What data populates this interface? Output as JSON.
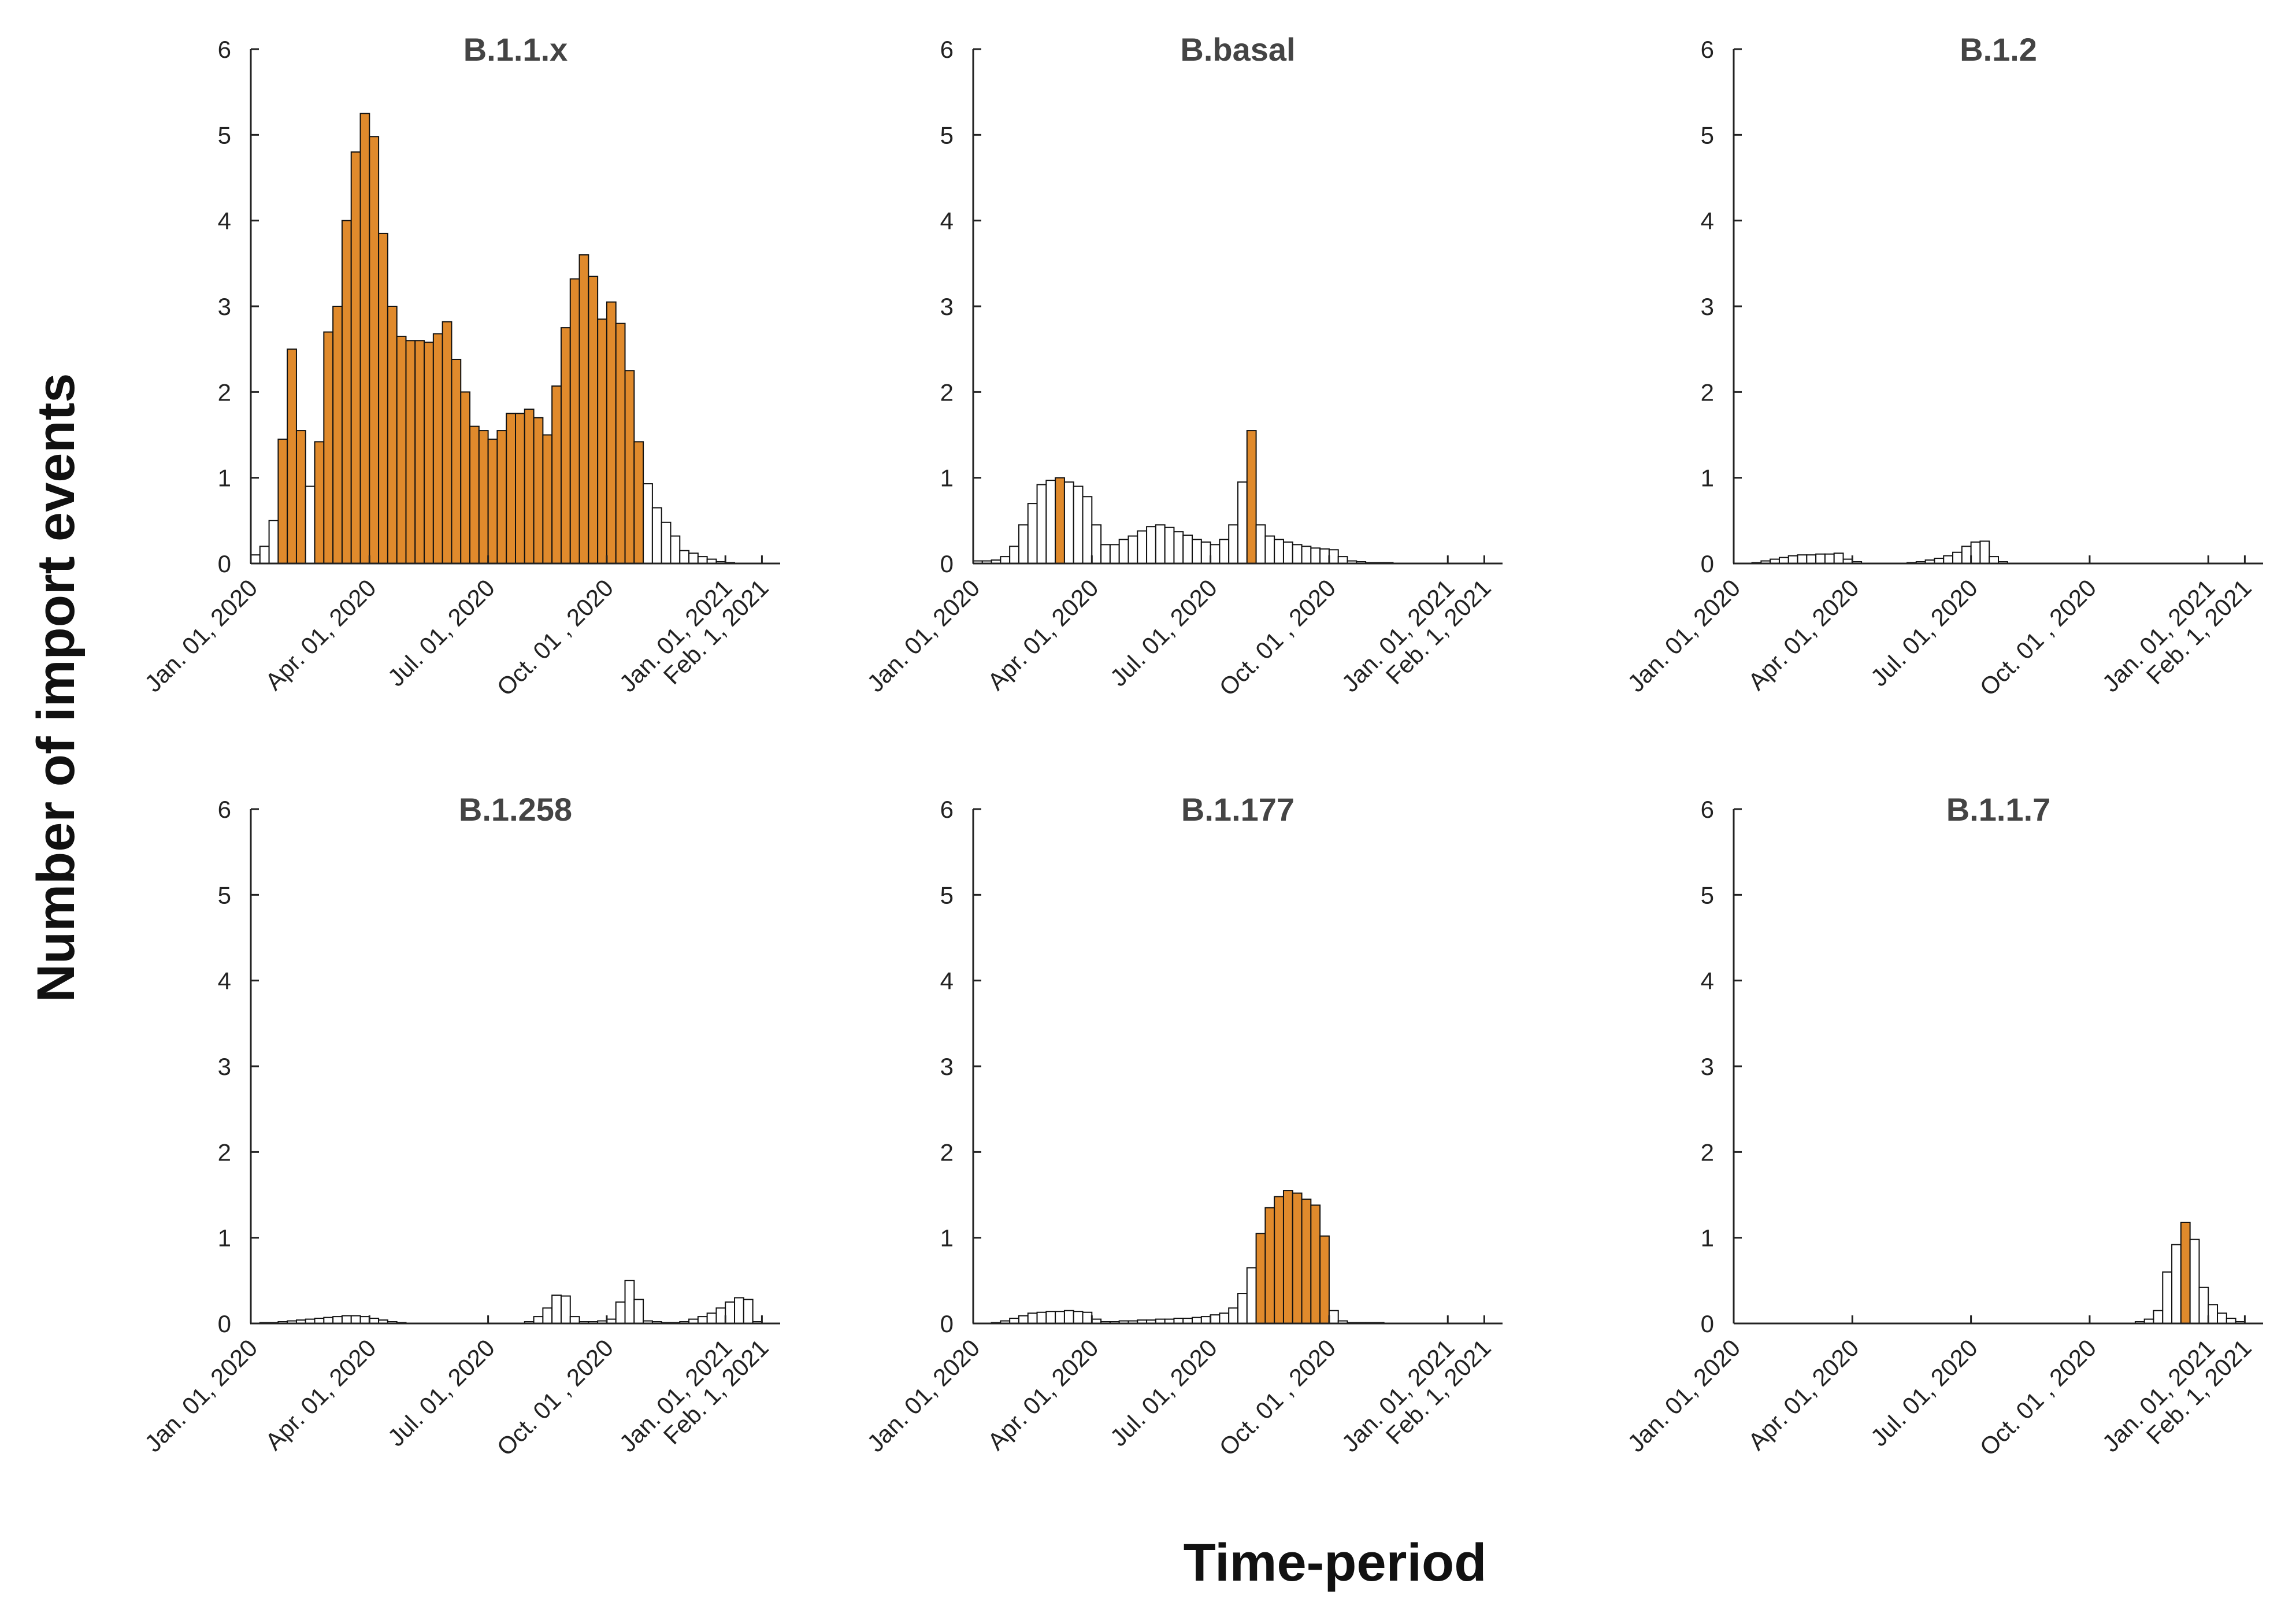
{
  "figure": {
    "ylabel": "Number of import events",
    "xlabel": "Time-period",
    "colors": {
      "highlight": "#E08A2C",
      "plain": "#ffffff",
      "edge": "#111111"
    }
  },
  "chart_data": [
    {
      "type": "bar",
      "title": "B.1.1.x",
      "ylim": [
        0,
        6
      ],
      "yticks": [
        "0",
        "1",
        "2",
        "3",
        "4",
        "5",
        "6"
      ],
      "xticks": [
        "Jan. 01, 2020",
        "Apr. 01, 2020",
        "Jul. 01, 2020",
        "Oct. 01 , 2020",
        "Jan. 01, 2021",
        "Feb. 1, 2021"
      ],
      "xtick_weeks": [
        0,
        13,
        26,
        39,
        52,
        56
      ],
      "start_week": 0,
      "values": [
        0.1,
        0.2,
        0.5,
        1.45,
        2.5,
        1.55,
        0.9,
        1.42,
        2.7,
        3.0,
        4.0,
        4.8,
        5.25,
        4.98,
        3.85,
        3.0,
        2.65,
        2.6,
        2.6,
        2.58,
        2.68,
        2.82,
        2.38,
        2.0,
        1.6,
        1.55,
        1.45,
        1.55,
        1.75,
        1.75,
        1.8,
        1.7,
        1.5,
        2.07,
        2.75,
        3.32,
        3.6,
        3.35,
        2.85,
        3.05,
        2.8,
        2.25,
        1.42,
        0.93,
        0.65,
        0.48,
        0.32,
        0.15,
        0.12,
        0.08,
        0.05,
        0.02,
        0.01
      ],
      "highlighted": [
        0,
        0,
        0,
        1,
        1,
        1,
        0,
        1,
        1,
        1,
        1,
        1,
        1,
        1,
        1,
        1,
        1,
        1,
        1,
        1,
        1,
        1,
        1,
        1,
        1,
        1,
        1,
        1,
        1,
        1,
        1,
        1,
        1,
        1,
        1,
        1,
        1,
        1,
        1,
        1,
        1,
        1,
        1,
        0,
        0,
        0,
        0,
        0,
        0,
        0,
        0,
        0,
        0
      ]
    },
    {
      "type": "bar",
      "title": "B.basal",
      "ylim": [
        0,
        6
      ],
      "yticks": [
        "0",
        "1",
        "2",
        "3",
        "4",
        "5",
        "6"
      ],
      "xticks": [
        "Jan. 01, 2020",
        "Apr. 01, 2020",
        "Jul. 01, 2020",
        "Oct. 01 , 2020",
        "Jan. 01, 2021",
        "Feb. 1, 2021"
      ],
      "xtick_weeks": [
        0,
        13,
        26,
        39,
        52,
        56
      ],
      "start_week": 0,
      "values": [
        0.03,
        0.03,
        0.04,
        0.08,
        0.2,
        0.45,
        0.7,
        0.92,
        0.97,
        1.0,
        0.95,
        0.9,
        0.78,
        0.45,
        0.22,
        0.22,
        0.28,
        0.32,
        0.38,
        0.43,
        0.45,
        0.42,
        0.37,
        0.33,
        0.28,
        0.25,
        0.22,
        0.28,
        0.45,
        0.95,
        1.55,
        0.45,
        0.32,
        0.28,
        0.25,
        0.22,
        0.2,
        0.18,
        0.17,
        0.16,
        0.08,
        0.03,
        0.02,
        0.01,
        0.01,
        0.01
      ],
      "highlighted": [
        0,
        0,
        0,
        0,
        0,
        0,
        0,
        0,
        0,
        1,
        0,
        0,
        0,
        0,
        0,
        0,
        0,
        0,
        0,
        0,
        0,
        0,
        0,
        0,
        0,
        0,
        0,
        0,
        0,
        0,
        1,
        0,
        0,
        0,
        0,
        0,
        0,
        0,
        0,
        0,
        0,
        0,
        0,
        0,
        0,
        0
      ]
    },
    {
      "type": "bar",
      "title": "B.1.2",
      "ylim": [
        0,
        6
      ],
      "yticks": [
        "0",
        "1",
        "2",
        "3",
        "4",
        "5",
        "6"
      ],
      "xticks": [
        "Jan. 01, 2020",
        "Apr. 01, 2020",
        "Jul. 01, 2020",
        "Oct. 01 , 2020",
        "Jan. 01, 2021",
        "Feb. 1, 2021"
      ],
      "xtick_weeks": [
        0,
        13,
        26,
        39,
        52,
        56
      ],
      "start_week": 0,
      "values": [
        0.0,
        0.0,
        0.01,
        0.03,
        0.05,
        0.07,
        0.09,
        0.1,
        0.1,
        0.11,
        0.11,
        0.12,
        0.05,
        0.02,
        0.0,
        0.0,
        0.0,
        0.0,
        0.0,
        0.01,
        0.02,
        0.04,
        0.06,
        0.09,
        0.13,
        0.2,
        0.25,
        0.26,
        0.08,
        0.02,
        0.0
      ],
      "highlighted": [
        0,
        0,
        0,
        0,
        0,
        0,
        0,
        0,
        0,
        0,
        0,
        0,
        0,
        0,
        0,
        0,
        0,
        0,
        0,
        0,
        0,
        0,
        0,
        0,
        0,
        0,
        0,
        0,
        0,
        0,
        0
      ]
    },
    {
      "type": "bar",
      "title": "B.1.258",
      "ylim": [
        0,
        6
      ],
      "yticks": [
        "0",
        "1",
        "2",
        "3",
        "4",
        "5",
        "6"
      ],
      "xticks": [
        "Jan. 01, 2020",
        "Apr. 01, 2020",
        "Jul. 01, 2020",
        "Oct. 01 , 2020",
        "Jan. 01, 2021",
        "Feb. 1, 2021"
      ],
      "xtick_weeks": [
        0,
        13,
        26,
        39,
        52,
        56
      ],
      "start_week": 0,
      "values": [
        0.0,
        0.01,
        0.01,
        0.02,
        0.03,
        0.04,
        0.05,
        0.06,
        0.07,
        0.08,
        0.09,
        0.09,
        0.08,
        0.06,
        0.04,
        0.02,
        0.01,
        0.0,
        0.0,
        0.0,
        0.0,
        0.0,
        0.0,
        0.0,
        0.0,
        0.0,
        0.0,
        0.0,
        0.0,
        0.0,
        0.02,
        0.08,
        0.18,
        0.33,
        0.32,
        0.08,
        0.02,
        0.02,
        0.03,
        0.05,
        0.25,
        0.5,
        0.28,
        0.03,
        0.02,
        0.01,
        0.01,
        0.02,
        0.05,
        0.08,
        0.12,
        0.18,
        0.25,
        0.3,
        0.28,
        0.02
      ],
      "highlighted": [
        0,
        0,
        0,
        0,
        0,
        0,
        0,
        0,
        0,
        0,
        0,
        0,
        0,
        0,
        0,
        0,
        0,
        0,
        0,
        0,
        0,
        0,
        0,
        0,
        0,
        0,
        0,
        0,
        0,
        0,
        0,
        0,
        0,
        0,
        0,
        0,
        0,
        0,
        0,
        0,
        0,
        0,
        0,
        0,
        0,
        0,
        0,
        0,
        0,
        0,
        0,
        0,
        0,
        0,
        0,
        0
      ]
    },
    {
      "type": "bar",
      "title": "B.1.177",
      "ylim": [
        0,
        6
      ],
      "yticks": [
        "0",
        "1",
        "2",
        "3",
        "4",
        "5",
        "6"
      ],
      "xticks": [
        "Jan. 01, 2020",
        "Apr. 01, 2020",
        "Jul. 01, 2020",
        "Oct. 01 , 2020",
        "Jan. 01, 2021",
        "Feb. 1, 2021"
      ],
      "xtick_weeks": [
        0,
        13,
        26,
        39,
        52,
        56
      ],
      "start_week": 0,
      "values": [
        0.0,
        0.0,
        0.01,
        0.03,
        0.06,
        0.09,
        0.12,
        0.13,
        0.14,
        0.14,
        0.15,
        0.14,
        0.13,
        0.05,
        0.02,
        0.02,
        0.03,
        0.03,
        0.04,
        0.04,
        0.05,
        0.05,
        0.06,
        0.06,
        0.07,
        0.08,
        0.1,
        0.12,
        0.18,
        0.35,
        0.65,
        1.05,
        1.35,
        1.48,
        1.55,
        1.52,
        1.45,
        1.38,
        1.02,
        0.15,
        0.03,
        0.01,
        0.01,
        0.01,
        0.01,
        0.0
      ],
      "highlighted": [
        0,
        0,
        0,
        0,
        0,
        0,
        0,
        0,
        0,
        0,
        0,
        0,
        0,
        0,
        0,
        0,
        0,
        0,
        0,
        0,
        0,
        0,
        0,
        0,
        0,
        0,
        0,
        0,
        0,
        0,
        0,
        1,
        1,
        1,
        1,
        1,
        1,
        1,
        1,
        0,
        0,
        0,
        0,
        0,
        0,
        0
      ]
    },
    {
      "type": "bar",
      "title": "B.1.1.7",
      "ylim": [
        0,
        6
      ],
      "yticks": [
        "0",
        "1",
        "2",
        "3",
        "4",
        "5",
        "6"
      ],
      "xticks": [
        "Jan. 01, 2020",
        "Apr. 01, 2020",
        "Jul. 01, 2020",
        "Oct. 01 , 2020",
        "Jan. 01, 2021",
        "Feb. 1, 2021"
      ],
      "xtick_weeks": [
        0,
        13,
        26,
        39,
        52,
        56
      ],
      "start_week": 44,
      "values": [
        0.02,
        0.05,
        0.15,
        0.6,
        0.92,
        1.18,
        0.98,
        0.42,
        0.22,
        0.12,
        0.06,
        0.02
      ],
      "highlighted": [
        0,
        0,
        0,
        0,
        0,
        1,
        0,
        0,
        0,
        0,
        0,
        0
      ]
    }
  ]
}
